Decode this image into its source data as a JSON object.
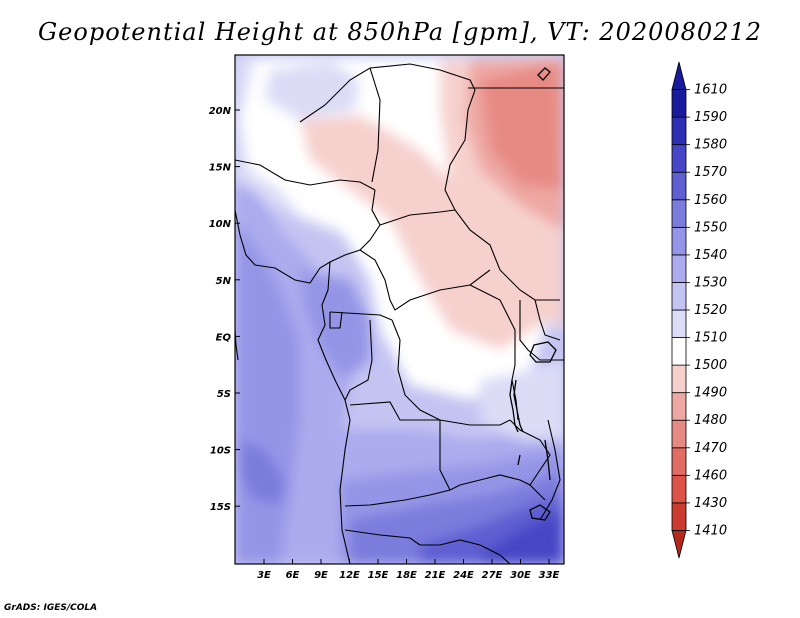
{
  "title": "Geopotential Height at 850hPa [gpm], VT: 2020080212",
  "credit": "GrADS: IGES/COLA",
  "map": {
    "lon_labels": [
      "3E",
      "6E",
      "9E",
      "12E",
      "15E",
      "18E",
      "21E",
      "24E",
      "27E",
      "30E",
      "33E"
    ],
    "lat_labels": [
      "20N",
      "15N",
      "10N",
      "5N",
      "EQ",
      "5S",
      "10S",
      "15S"
    ]
  },
  "colorbar": {
    "levels": [
      "1410",
      "1430",
      "1460",
      "1470",
      "1480",
      "1490",
      "1500",
      "1510",
      "1520",
      "1530",
      "1540",
      "1550",
      "1560",
      "1570",
      "1580",
      "1590",
      "1610"
    ],
    "colors": [
      "#b5281e",
      "#cc3b30",
      "#dd5348",
      "#e06c64",
      "#e78a84",
      "#eea8a3",
      "#f6d0cd",
      "#ffffff",
      "#dcdcf7",
      "#c4c4f2",
      "#ababee",
      "#9595e7",
      "#7c7cdd",
      "#5f5fd2",
      "#4646c6",
      "#2e2eb5",
      "#1a1a9e"
    ]
  }
}
